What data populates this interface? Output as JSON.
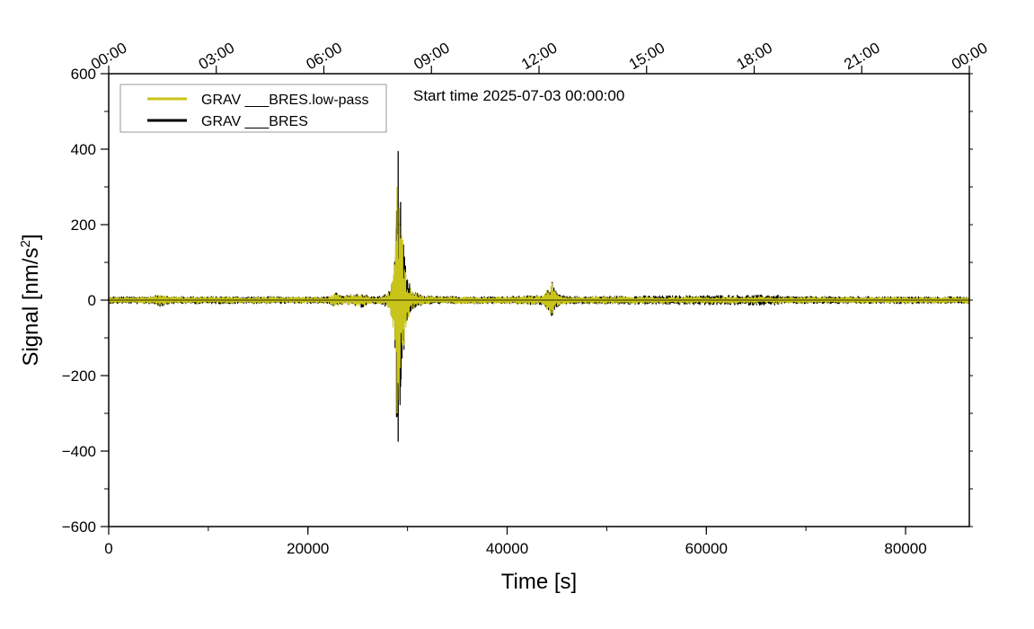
{
  "chart_data": {
    "type": "line",
    "title": "",
    "annotation": "Start time 2025-07-03 00:00:00",
    "xlabel": "Time [s]",
    "ylabel_main": "Signal [nm/s",
    "ylabel_sup": "2",
    "ylabel_tail": "]",
    "xlim": [
      0,
      86400
    ],
    "ylim": [
      -600,
      600
    ],
    "x_ticks": [
      0,
      20000,
      40000,
      60000,
      80000
    ],
    "x_tick_labels": [
      "0",
      "20000",
      "40000",
      "60000",
      "80000"
    ],
    "x_minor_step": 10000,
    "y_ticks": [
      -600,
      -400,
      -200,
      0,
      200,
      400,
      600
    ],
    "y_tick_labels": [
      "−600",
      "−400",
      "−200",
      "0",
      "200",
      "400",
      "600"
    ],
    "y_minor_step": 100,
    "top_ticks": [
      0,
      10800,
      21600,
      32400,
      43200,
      54000,
      64800,
      75600,
      86400
    ],
    "top_tick_labels": [
      "00:00",
      "03:00",
      "06:00",
      "09:00",
      "12:00",
      "15:00",
      "18:00",
      "21:00",
      "00:00"
    ],
    "grid": false,
    "legend_position": "top-left",
    "series": [
      {
        "name": "GRAV ___BRES.low-pass",
        "color": "#c8c41a",
        "envelope": [
          [
            0,
            8
          ],
          [
            4500,
            9
          ],
          [
            5200,
            16
          ],
          [
            6000,
            9
          ],
          [
            22000,
            8
          ],
          [
            22800,
            18
          ],
          [
            23500,
            10
          ],
          [
            25500,
            18
          ],
          [
            26200,
            9
          ],
          [
            27500,
            10
          ],
          [
            28200,
            24
          ],
          [
            28700,
            95
          ],
          [
            29000,
            300
          ],
          [
            29200,
            270
          ],
          [
            29500,
            160
          ],
          [
            29900,
            60
          ],
          [
            30500,
            22
          ],
          [
            31500,
            12
          ],
          [
            33000,
            9
          ],
          [
            40000,
            9
          ],
          [
            43500,
            12
          ],
          [
            44500,
            42
          ],
          [
            45000,
            16
          ],
          [
            46000,
            9
          ],
          [
            86400,
            8
          ]
        ],
        "spikes": [
          [
            28950,
            300,
            -300
          ],
          [
            29150,
            245,
            -230
          ],
          [
            29500,
            160,
            -120
          ],
          [
            29800,
            70,
            -60
          ],
          [
            44500,
            45,
            -35
          ]
        ]
      },
      {
        "name": "GRAV ___BRES",
        "color": "#000000",
        "envelope": [
          [
            0,
            9
          ],
          [
            4500,
            10
          ],
          [
            5200,
            18
          ],
          [
            6000,
            10
          ],
          [
            22000,
            9
          ],
          [
            22800,
            20
          ],
          [
            23500,
            11
          ],
          [
            25500,
            20
          ],
          [
            26200,
            10
          ],
          [
            27500,
            11
          ],
          [
            28200,
            26
          ],
          [
            28700,
            105
          ],
          [
            29000,
            395
          ],
          [
            29200,
            300
          ],
          [
            29500,
            175
          ],
          [
            29900,
            65
          ],
          [
            30500,
            24
          ],
          [
            31500,
            13
          ],
          [
            33000,
            10
          ],
          [
            40000,
            10
          ],
          [
            43500,
            13
          ],
          [
            44500,
            46
          ],
          [
            45000,
            18
          ],
          [
            46000,
            10
          ],
          [
            66800,
            14
          ],
          [
            67300,
            10
          ],
          [
            86400,
            9
          ]
        ],
        "spikes": [
          [
            29060,
            395,
            -375
          ],
          [
            28900,
            190,
            -310
          ],
          [
            29300,
            260,
            -230
          ],
          [
            29650,
            110,
            -90
          ],
          [
            44520,
            48,
            -40
          ],
          [
            67200,
            14,
            -12
          ]
        ]
      }
    ]
  }
}
